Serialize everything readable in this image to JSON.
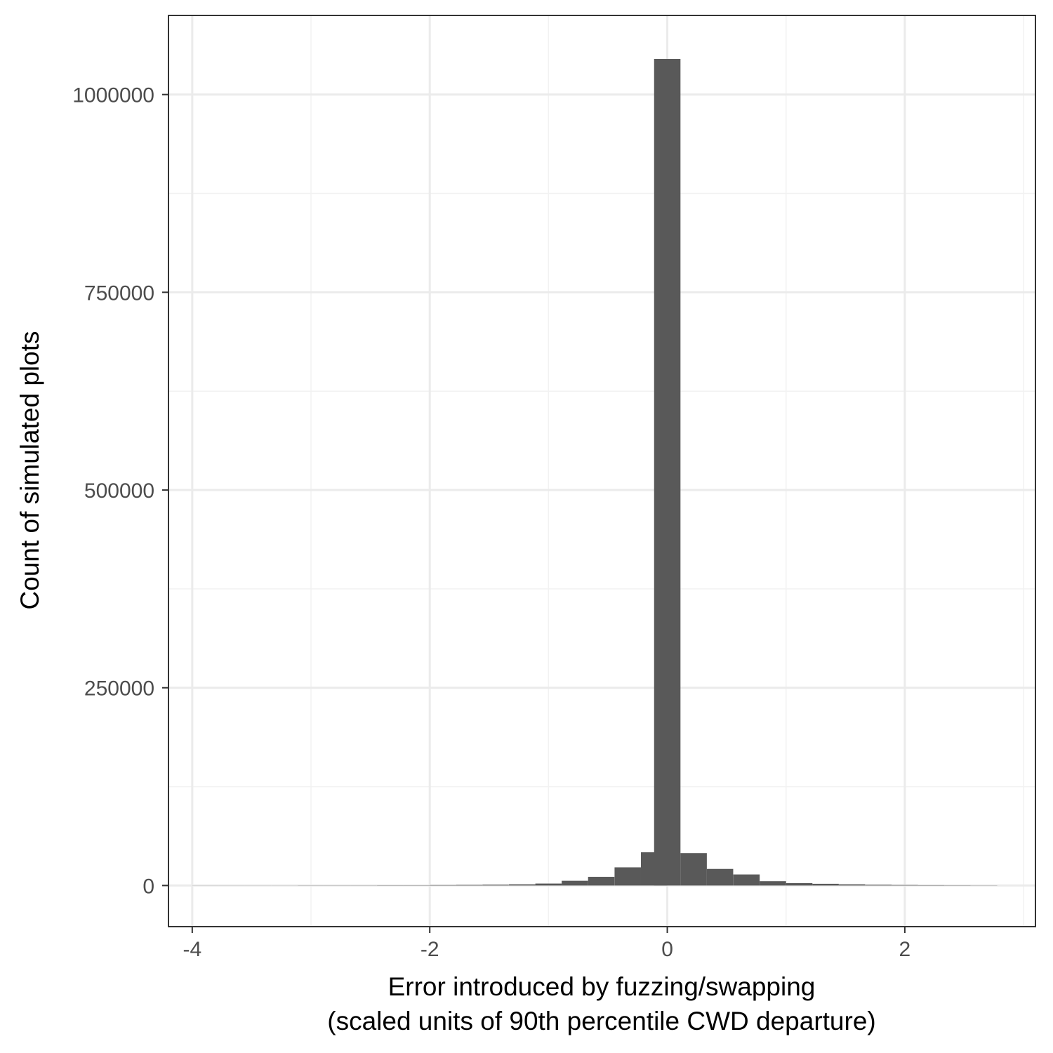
{
  "chart_data": {
    "type": "bar",
    "xlabel_line1": "Error introduced by fuzzing/swapping",
    "xlabel_line2": "(scaled units of 90th percentile CWD departure)",
    "ylabel": "Count of simulated plots",
    "xlim": [
      -4.2,
      3.1
    ],
    "ylim": [
      -52000,
      1100000
    ],
    "x_ticks": [
      -4,
      -2,
      0,
      2
    ],
    "y_ticks": [
      0,
      250000,
      500000,
      750000,
      1000000
    ],
    "x_tick_labels": [
      "-4",
      "-2",
      "0",
      "2"
    ],
    "y_tick_labels": [
      "0",
      "250000",
      "500000",
      "750000",
      "1000000"
    ],
    "bin_width": 0.222,
    "bins": [
      {
        "x0": -4.0,
        "count": 100
      },
      {
        "x0": -3.778,
        "count": 100
      },
      {
        "x0": -3.556,
        "count": 100
      },
      {
        "x0": -3.333,
        "count": 100
      },
      {
        "x0": -3.111,
        "count": 200
      },
      {
        "x0": -2.889,
        "count": 200
      },
      {
        "x0": -2.667,
        "count": 200
      },
      {
        "x0": -2.444,
        "count": 300
      },
      {
        "x0": -2.222,
        "count": 300
      },
      {
        "x0": -2.0,
        "count": 500
      },
      {
        "x0": -1.778,
        "count": 700
      },
      {
        "x0": -1.556,
        "count": 1000
      },
      {
        "x0": -1.333,
        "count": 1500
      },
      {
        "x0": -1.111,
        "count": 2500
      },
      {
        "x0": -0.889,
        "count": 6000
      },
      {
        "x0": -0.667,
        "count": 11000
      },
      {
        "x0": -0.444,
        "count": 23000
      },
      {
        "x0": -0.222,
        "count": 42000
      },
      {
        "x0": -0.111,
        "count": 1045000
      },
      {
        "x0": 0.111,
        "count": 41000
      },
      {
        "x0": 0.333,
        "count": 21000
      },
      {
        "x0": 0.556,
        "count": 14000
      },
      {
        "x0": 0.778,
        "count": 5500
      },
      {
        "x0": 1.0,
        "count": 3000
      },
      {
        "x0": 1.222,
        "count": 2200
      },
      {
        "x0": 1.444,
        "count": 1500
      },
      {
        "x0": 1.667,
        "count": 900
      },
      {
        "x0": 1.889,
        "count": 600
      },
      {
        "x0": 2.111,
        "count": 400
      },
      {
        "x0": 2.333,
        "count": 300
      },
      {
        "x0": 2.556,
        "count": 200
      }
    ],
    "grid": true,
    "colors": {
      "bar": "#595959",
      "panel_border": "#333333",
      "grid_major": "#ebebeb",
      "grid_minor": "#f2f2f2",
      "tick_text": "#4d4d4d",
      "axis_title": "#000000"
    }
  }
}
